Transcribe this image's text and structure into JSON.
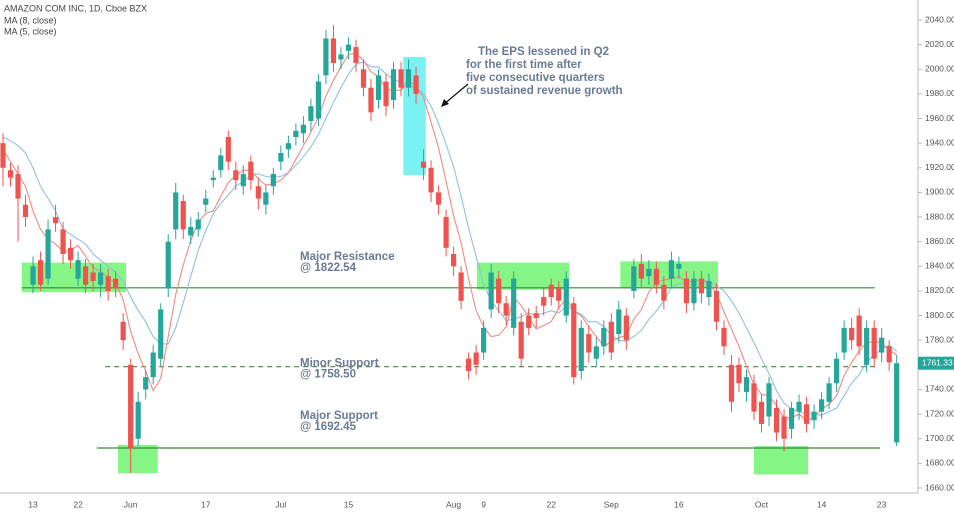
{
  "chart_data": {
    "type": "candlestick",
    "title": "AMAZON COM INC, 1D, Cboe BZX",
    "up_color": "#26a69a",
    "down_color": "#ef5350",
    "categories": [
      null,
      null,
      null,
      null,
      "13",
      null,
      null,
      null,
      null,
      null,
      "22",
      null,
      null,
      null,
      null,
      null,
      null,
      "Jun",
      null,
      null,
      null,
      null,
      null,
      null,
      null,
      null,
      null,
      "17",
      null,
      null,
      null,
      null,
      null,
      null,
      null,
      null,
      null,
      "Jul",
      null,
      null,
      null,
      null,
      null,
      null,
      null,
      null,
      "15",
      null,
      null,
      null,
      null,
      null,
      null,
      null,
      null,
      null,
      null,
      null,
      null,
      null,
      "Aug",
      null,
      null,
      null,
      "9",
      null,
      null,
      null,
      null,
      null,
      null,
      null,
      null,
      "22",
      null,
      null,
      null,
      null,
      null,
      null,
      null,
      "Sep",
      null,
      null,
      null,
      null,
      null,
      null,
      null,
      null,
      "16",
      null,
      null,
      null,
      null,
      null,
      null,
      null,
      null,
      null,
      null,
      "Oct",
      null,
      null,
      null,
      null,
      null,
      null,
      null,
      "14",
      null,
      null,
      null,
      null,
      null,
      null,
      null,
      "23",
      null,
      null
    ],
    "open": [
      1940,
      1918,
      1915,
      1890,
      1825,
      1845,
      1830,
      1880,
      1870,
      1855,
      1830,
      1840,
      1835,
      1825,
      1832,
      1830,
      1795,
      1760,
      1700,
      1740,
      1750,
      1765,
      1822,
      1870,
      1893,
      1865,
      1870,
      1890,
      1910,
      1918,
      1945,
      1918,
      1905,
      1925,
      1905,
      1890,
      1905,
      1925,
      1935,
      1945,
      1948,
      1958,
      1960,
      1995,
      2025,
      2008,
      2015,
      2018,
      2000,
      1985,
      1975,
      1990,
      1975,
      2000,
      1985,
      1995,
      1925,
      1920,
      1900,
      1880,
      1850,
      1835,
      1765,
      1770,
      1770,
      1805,
      1830,
      1810,
      1790,
      1795,
      1800,
      1802,
      1815,
      1825,
      1822,
      1800,
      1810,
      1755,
      1785,
      1765,
      1775,
      1795,
      1785,
      1800,
      1820,
      1842,
      1832,
      1838,
      1825,
      1830,
      1838,
      1830,
      1810,
      1830,
      1815,
      1820,
      1790,
      1760,
      1760,
      1738,
      1745,
      1730,
      1718,
      1725,
      1718,
      1708,
      1722,
      1728,
      1715,
      1722,
      1730,
      1745,
      1770,
      1790,
      1800,
      1760,
      1790,
      1770,
      1775,
      1697
    ],
    "high": [
      1948,
      1924,
      1922,
      1898,
      1848,
      1852,
      1878,
      1890,
      1876,
      1862,
      1852,
      1846,
      1842,
      1842,
      1838,
      1836,
      1802,
      1765,
      1738,
      1756,
      1776,
      1810,
      1866,
      1908,
      1898,
      1880,
      1884,
      1902,
      1918,
      1936,
      1950,
      1925,
      1922,
      1930,
      1912,
      1906,
      1920,
      1938,
      1946,
      1956,
      1962,
      1976,
      1996,
      2032,
      2036,
      2018,
      2026,
      2024,
      2008,
      1992,
      2000,
      1996,
      2006,
      2006,
      2008,
      2002,
      1935,
      1926,
      1906,
      1886,
      1856,
      1840,
      1770,
      1776,
      1796,
      1842,
      1836,
      1816,
      1836,
      1802,
      1806,
      1808,
      1822,
      1830,
      1828,
      1836,
      1815,
      1796,
      1792,
      1782,
      1796,
      1802,
      1812,
      1806,
      1846,
      1850,
      1845,
      1844,
      1832,
      1852,
      1848,
      1836,
      1836,
      1836,
      1834,
      1826,
      1796,
      1768,
      1766,
      1756,
      1752,
      1736,
      1750,
      1732,
      1724,
      1730,
      1736,
      1734,
      1728,
      1738,
      1750,
      1770,
      1796,
      1798,
      1806,
      1796,
      1796,
      1790,
      1780,
      1768
    ],
    "low": [
      1905,
      1905,
      1860,
      1872,
      1818,
      1820,
      1825,
      1868,
      1842,
      1838,
      1824,
      1818,
      1820,
      1815,
      1812,
      1815,
      1772,
      1672,
      1694,
      1732,
      1744,
      1758,
      1815,
      1862,
      1862,
      1858,
      1864,
      1884,
      1904,
      1912,
      1918,
      1902,
      1898,
      1902,
      1886,
      1882,
      1898,
      1918,
      1928,
      1938,
      1940,
      1950,
      1954,
      1988,
      1998,
      2000,
      2008,
      1998,
      1978,
      1958,
      1968,
      1962,
      1968,
      1978,
      1978,
      1972,
      1910,
      1892,
      1882,
      1848,
      1832,
      1805,
      1748,
      1752,
      1764,
      1798,
      1802,
      1792,
      1784,
      1758,
      1784,
      1790,
      1800,
      1808,
      1805,
      1794,
      1744,
      1748,
      1762,
      1758,
      1768,
      1764,
      1778,
      1772,
      1814,
      1822,
      1825,
      1818,
      1805,
      1822,
      1830,
      1802,
      1804,
      1810,
      1808,
      1788,
      1768,
      1722,
      1738,
      1730,
      1715,
      1705,
      1710,
      1698,
      1690,
      1700,
      1715,
      1705,
      1708,
      1716,
      1724,
      1738,
      1764,
      1772,
      1768,
      1754,
      1758,
      1762,
      1755,
      1694
    ],
    "close": [
      1920,
      1912,
      1895,
      1880,
      1840,
      1825,
      1870,
      1875,
      1850,
      1845,
      1845,
      1825,
      1828,
      1835,
      1820,
      1822,
      1780,
      1692,
      1730,
      1750,
      1770,
      1805,
      1860,
      1900,
      1870,
      1872,
      1878,
      1895,
      1912,
      1930,
      1925,
      1910,
      1915,
      1910,
      1895,
      1900,
      1915,
      1932,
      1940,
      1950,
      1955,
      1970,
      1990,
      2025,
      2005,
      2012,
      2020,
      2005,
      1985,
      1965,
      1995,
      1970,
      2000,
      1985,
      2000,
      1980,
      1920,
      1900,
      1890,
      1855,
      1840,
      1812,
      1755,
      1760,
      1790,
      1835,
      1810,
      1800,
      1830,
      1765,
      1790,
      1798,
      1808,
      1815,
      1812,
      1830,
      1750,
      1790,
      1770,
      1775,
      1790,
      1770,
      1805,
      1780,
      1840,
      1830,
      1838,
      1825,
      1812,
      1845,
      1842,
      1810,
      1830,
      1818,
      1828,
      1795,
      1775,
      1730,
      1745,
      1750,
      1722,
      1712,
      1745,
      1705,
      1700,
      1725,
      1730,
      1712,
      1722,
      1732,
      1745,
      1765,
      1790,
      1780,
      1775,
      1790,
      1765,
      1782,
      1762,
      1761.33
    ],
    "series": [
      {
        "name": "MA (8, close)",
        "color": "#8fbfe0",
        "values": [
          1945,
          1942,
          1938,
          1932,
          1920,
          1905,
          1895,
          1885,
          1870,
          1866,
          1862,
          1858,
          1850,
          1845,
          1840,
          1835,
          1828,
          1815,
          1804,
          1795,
          1783,
          1777,
          1777,
          1790,
          1810,
          1832,
          1853,
          1869,
          1883,
          1891,
          1898,
          1905,
          1909,
          1914,
          1915,
          1913,
          1912,
          1913,
          1916,
          1922,
          1929,
          1937,
          1947,
          1960,
          1973,
          1985,
          1996,
          2004,
          2006,
          2002,
          2002,
          1996,
          1992,
          1989,
          1988,
          1984,
          1980,
          1970,
          1956,
          1939,
          1921,
          1897,
          1871,
          1848,
          1826,
          1812,
          1804,
          1796,
          1797,
          1799,
          1802,
          1800,
          1802,
          1804,
          1802,
          1808,
          1804,
          1801,
          1795,
          1795,
          1791,
          1784,
          1780,
          1779,
          1783,
          1788,
          1797,
          1804,
          1812,
          1823,
          1826,
          1826,
          1829,
          1829,
          1828,
          1824,
          1820,
          1812,
          1802,
          1790,
          1778,
          1765,
          1753,
          1739,
          1729,
          1724,
          1722,
          1720,
          1720,
          1719,
          1722,
          1725,
          1735,
          1745,
          1752,
          1762,
          1768,
          1773,
          1776,
          1771
        ]
      },
      {
        "name": "MA (5, close)",
        "color": "#f08a80",
        "values": [
          1935,
          1925,
          1915,
          1905,
          1885,
          1870,
          1862,
          1858,
          1852,
          1853,
          1857,
          1848,
          1839,
          1836,
          1831,
          1826,
          1813,
          1787,
          1769,
          1755,
          1739,
          1749,
          1783,
          1817,
          1841,
          1861,
          1876,
          1883,
          1885,
          1897,
          1908,
          1914,
          1918,
          1918,
          1911,
          1906,
          1907,
          1910,
          1916,
          1927,
          1938,
          1949,
          1961,
          1978,
          1991,
          2002,
          2012,
          2013,
          2007,
          1998,
          1994,
          1984,
          1983,
          1983,
          1990,
          1987,
          1977,
          1957,
          1936,
          1909,
          1881,
          1859,
          1830,
          1804,
          1791,
          1783,
          1784,
          1791,
          1815,
          1808,
          1799,
          1789,
          1792,
          1795,
          1806,
          1814,
          1803,
          1800,
          1791,
          1783,
          1775,
          1779,
          1782,
          1784,
          1797,
          1805,
          1819,
          1827,
          1829,
          1830,
          1832,
          1827,
          1828,
          1829,
          1826,
          1818,
          1803,
          1789,
          1775,
          1759,
          1744,
          1736,
          1735,
          1727,
          1717,
          1717,
          1720,
          1714,
          1718,
          1724,
          1728,
          1735,
          1751,
          1762,
          1771,
          1778,
          1779,
          1778,
          1772,
          1768
        ]
      }
    ],
    "ylim": [
      1660,
      2040
    ],
    "yticks": [
      {
        "value": 1660,
        "label": "1660.00"
      },
      {
        "value": 1680,
        "label": "1680.00"
      },
      {
        "value": 1700,
        "label": "1700.00"
      },
      {
        "value": 1720,
        "label": "1720.00"
      },
      {
        "value": 1740,
        "label": "1740.00"
      },
      {
        "value": 1760,
        "label": "1760.00"
      },
      {
        "value": 1780,
        "label": "1780.00"
      },
      {
        "value": 1800,
        "label": "1800.00"
      },
      {
        "value": 1820,
        "label": "1820.00"
      },
      {
        "value": 1840,
        "label": "1840.00"
      },
      {
        "value": 1860,
        "label": "1860.00"
      },
      {
        "value": 1880,
        "label": "1880.00"
      },
      {
        "value": 1900,
        "label": "1900.00"
      },
      {
        "value": 1920,
        "label": "1920.00"
      },
      {
        "value": 1940,
        "label": "1940.00"
      },
      {
        "value": 1960,
        "label": "1960.00"
      },
      {
        "value": 1980,
        "label": "1980.00"
      },
      {
        "value": 2000,
        "label": "2000.00"
      },
      {
        "value": 2020,
        "label": "2020.00"
      },
      {
        "value": 2040,
        "label": "2040.00"
      }
    ],
    "levels": [
      {
        "name": "Major Resistance",
        "label": "@ 1822.54",
        "value": 1822.54,
        "range": [
          2.5,
          116.1
        ],
        "style": "solid"
      },
      {
        "name": "Minor Support",
        "label": "@ 1758.50",
        "value": 1758.5,
        "range": [
          13.6,
          116.1
        ],
        "style": "dashed"
      },
      {
        "name": "Major Support",
        "label": "@ 1692.45",
        "value": 1692.45,
        "range": [
          12.5,
          116.8
        ],
        "style": "solid"
      }
    ],
    "zones": [
      {
        "range": [
          2.5,
          16.4
        ],
        "ylim": [
          1819,
          1843
        ],
        "color": "#5cf25c"
      },
      {
        "range": [
          15.3,
          20.6
        ],
        "ylim": [
          1672,
          1695
        ],
        "color": "#5cf25c"
      },
      {
        "range": [
          63.1,
          75.4
        ],
        "ylim": [
          1821,
          1843
        ],
        "color": "#5cf25c"
      },
      {
        "range": [
          82.2,
          95.2
        ],
        "ylim": [
          1822,
          1844
        ],
        "color": "#5cf25c"
      },
      {
        "range": [
          100,
          107.2
        ],
        "ylim": [
          1671,
          1694
        ],
        "color": "#5cf25c"
      },
      {
        "range": [
          53.3,
          56.3
        ],
        "ylim": [
          1914,
          2010
        ],
        "color": "#4eeef0"
      }
    ],
    "annotation": [
      "The EPS lessened in Q2",
      "for the first time after",
      "five consecutive quarters",
      "of sustained revenue growth"
    ]
  }
}
